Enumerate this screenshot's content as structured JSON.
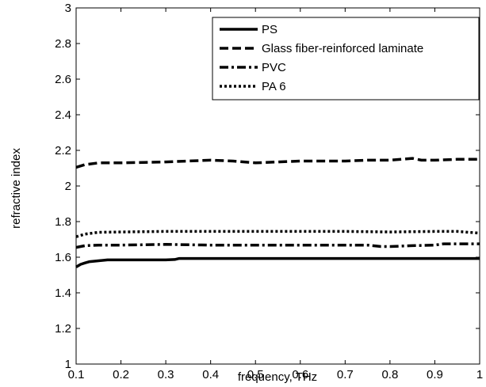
{
  "chart_data": {
    "type": "line",
    "title": "",
    "xlabel": "frequency, THz",
    "ylabel": "refractive index",
    "xlim": [
      0.1,
      1
    ],
    "ylim": [
      1,
      3
    ],
    "xticks": [
      "0.1",
      "0.2",
      "0.3",
      "0.4",
      "0.5",
      "0.6",
      "0.7",
      "0.8",
      "0.9",
      "1"
    ],
    "yticks": [
      "1",
      "1.2",
      "1.4",
      "1.6",
      "1.8",
      "2",
      "2.2",
      "2.4",
      "2.6",
      "2.8",
      "3"
    ],
    "grid": false,
    "legend_position": "top-right",
    "series": [
      {
        "name": "PS",
        "style": "solid",
        "color": "#000000",
        "x": [
          0.1,
          0.11,
          0.12,
          0.13,
          0.15,
          0.17,
          0.2,
          0.25,
          0.3,
          0.32,
          0.33,
          0.4,
          0.5,
          0.6,
          0.7,
          0.8,
          0.9,
          1.0
        ],
        "y": [
          1.545,
          1.56,
          1.568,
          1.575,
          1.58,
          1.585,
          1.585,
          1.585,
          1.585,
          1.587,
          1.593,
          1.593,
          1.593,
          1.593,
          1.593,
          1.593,
          1.593,
          1.593
        ]
      },
      {
        "name": "Glass fiber-reinforced laminate",
        "style": "dashed",
        "color": "#000000",
        "x": [
          0.1,
          0.12,
          0.15,
          0.2,
          0.3,
          0.35,
          0.4,
          0.45,
          0.5,
          0.55,
          0.6,
          0.65,
          0.7,
          0.75,
          0.8,
          0.85,
          0.87,
          0.9,
          0.95,
          1.0
        ],
        "y": [
          2.105,
          2.12,
          2.13,
          2.13,
          2.135,
          2.14,
          2.145,
          2.14,
          2.13,
          2.135,
          2.14,
          2.14,
          2.14,
          2.145,
          2.145,
          2.155,
          2.145,
          2.145,
          2.15,
          2.15
        ]
      },
      {
        "name": "PVC",
        "style": "dashdot",
        "color": "#000000",
        "x": [
          0.1,
          0.12,
          0.15,
          0.2,
          0.3,
          0.4,
          0.5,
          0.6,
          0.7,
          0.75,
          0.78,
          0.8,
          0.85,
          0.9,
          0.92,
          0.95,
          1.0
        ],
        "y": [
          1.655,
          1.665,
          1.668,
          1.668,
          1.672,
          1.668,
          1.668,
          1.668,
          1.668,
          1.668,
          1.66,
          1.66,
          1.665,
          1.668,
          1.675,
          1.675,
          1.675
        ]
      },
      {
        "name": "PA 6",
        "style": "dotted",
        "color": "#000000",
        "x": [
          0.1,
          0.12,
          0.15,
          0.2,
          0.3,
          0.4,
          0.5,
          0.6,
          0.7,
          0.8,
          0.9,
          0.95,
          1.0
        ],
        "y": [
          1.715,
          1.73,
          1.74,
          1.742,
          1.745,
          1.745,
          1.745,
          1.745,
          1.745,
          1.742,
          1.745,
          1.745,
          1.735
        ]
      }
    ]
  }
}
